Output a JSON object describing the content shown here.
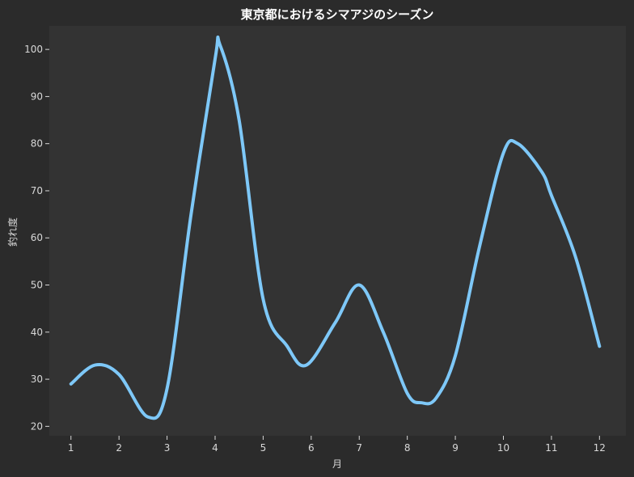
{
  "chart_data": {
    "type": "line",
    "title": "東京都におけるシマアジのシーズン",
    "xlabel": "月",
    "ylabel": "釣れ度",
    "x": [
      1,
      1.5,
      2,
      2.6,
      3,
      3.5,
      4,
      4.1,
      4.5,
      5,
      5.5,
      5.9,
      6.5,
      7,
      7.5,
      8,
      8.3,
      8.6,
      9,
      9.5,
      10,
      10.3,
      10.8,
      11,
      11.5,
      12
    ],
    "series": [
      {
        "values": [
          29,
          33,
          31,
          22,
          28,
          65,
          98,
          101,
          85,
          47,
          37,
          33,
          42,
          50,
          40,
          27,
          25,
          26,
          35,
          58,
          78,
          80,
          74,
          69,
          56,
          37
        ],
        "color": "#7ec8f8"
      }
    ],
    "xticks": [
      1,
      2,
      3,
      4,
      5,
      6,
      7,
      8,
      9,
      10,
      11,
      12
    ],
    "yticks": [
      20,
      30,
      40,
      50,
      60,
      70,
      80,
      90,
      100
    ],
    "xlim": [
      0.55,
      12.55
    ],
    "ylim": [
      18,
      105
    ],
    "grid": false,
    "background": "#333333",
    "figure_background": "#2b2b2b"
  }
}
